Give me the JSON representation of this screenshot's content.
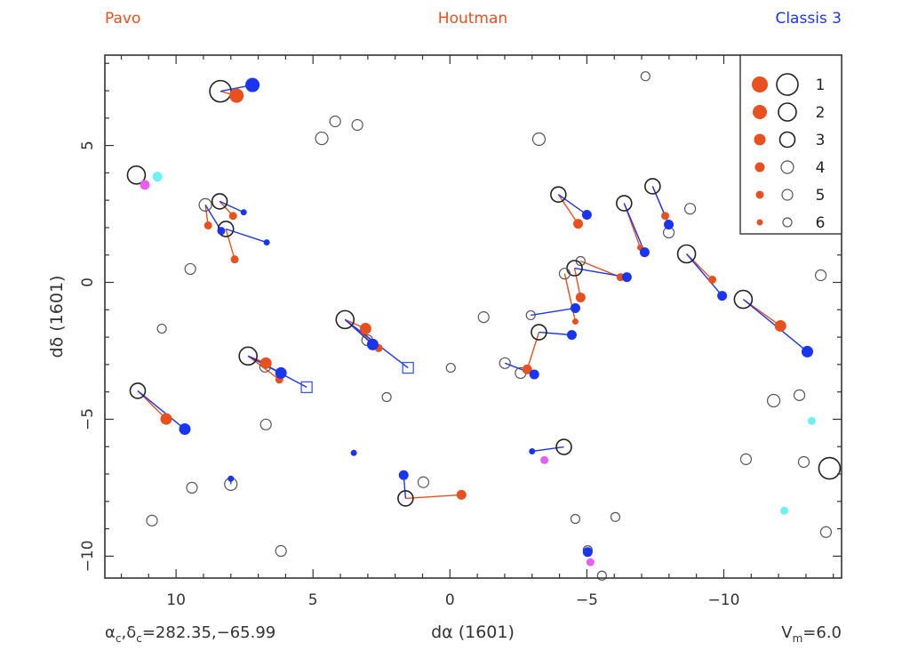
{
  "chart_data": {
    "type": "scatter",
    "title_left": "Pavo",
    "title_center": "Houtman",
    "title_right": "Classis 3",
    "xlabel": "dα (1601)",
    "ylabel": "dδ (1601)",
    "footer_left": {
      "a": "α",
      "a_sub": "c",
      "sep": ",",
      "d": "δ",
      "d_sub": "c",
      "value": "=282.35,−65.99"
    },
    "footer_right": {
      "v": "V",
      "v_sub": "m",
      "value": "=6.0"
    },
    "xlim": [
      12.6,
      -14.3
    ],
    "ylim": [
      -10.8,
      8.3
    ],
    "x_ticks": [
      10,
      5,
      0,
      -5,
      -10
    ],
    "x_tick_labels": [
      "10",
      "5",
      "0",
      "−5",
      "−10"
    ],
    "y_ticks": [
      5,
      0,
      -5,
      -10
    ],
    "y_tick_labels": [
      "5",
      "0",
      "−5",
      "−10"
    ],
    "grid": false,
    "colors": {
      "houtman": "#e8501e",
      "classis": "#1a35f0",
      "magenta": "#e85ef0",
      "cyan": "#6ef0f5",
      "star": "#222222",
      "frame": "#333333"
    },
    "legend": {
      "placement": "top-right",
      "entries": [
        {
          "mag": 1,
          "label": "1"
        },
        {
          "mag": 2,
          "label": "2"
        },
        {
          "mag": 3,
          "label": "3"
        },
        {
          "mag": 4,
          "label": "4"
        },
        {
          "mag": 5,
          "label": "5"
        },
        {
          "mag": 6,
          "label": "6"
        }
      ]
    },
    "stars": [
      {
        "x": 8.38,
        "y": 6.98,
        "mag": 1
      },
      {
        "x": 11.45,
        "y": 3.92,
        "mag": 2
      },
      {
        "x": 8.93,
        "y": 2.83,
        "mag": 4
      },
      {
        "x": 8.41,
        "y": 2.96,
        "mag": 3
      },
      {
        "x": 8.18,
        "y": 1.95,
        "mag": 3
      },
      {
        "x": 9.48,
        "y": 0.49,
        "mag": 5
      },
      {
        "x": 4.68,
        "y": 5.26,
        "mag": 4
      },
      {
        "x": 4.19,
        "y": 5.88,
        "mag": 5
      },
      {
        "x": 3.38,
        "y": 5.75,
        "mag": 5
      },
      {
        "x": -3.25,
        "y": 5.23,
        "mag": 4
      },
      {
        "x": -7.14,
        "y": 7.53,
        "mag": 6
      },
      {
        "x": 11.4,
        "y": -3.96,
        "mag": 3
      },
      {
        "x": 10.52,
        "y": -1.69,
        "mag": 6
      },
      {
        "x": 7.37,
        "y": -2.69,
        "mag": 2
      },
      {
        "x": 6.75,
        "y": -3.08,
        "mag": 5
      },
      {
        "x": 6.72,
        "y": -5.19,
        "mag": 5
      },
      {
        "x": 9.42,
        "y": -7.5,
        "mag": 5
      },
      {
        "x": 8.0,
        "y": -7.37,
        "mag": 4
      },
      {
        "x": 10.88,
        "y": -8.7,
        "mag": 5
      },
      {
        "x": 6.17,
        "y": -9.81,
        "mag": 5
      },
      {
        "x": 3.83,
        "y": -1.36,
        "mag": 2
      },
      {
        "x": 3.02,
        "y": -2.11,
        "mag": 5
      },
      {
        "x": 2.31,
        "y": -4.19,
        "mag": 6
      },
      {
        "x": -0.03,
        "y": -3.12,
        "mag": 6
      },
      {
        "x": -1.23,
        "y": -1.27,
        "mag": 5
      },
      {
        "x": 0.97,
        "y": -7.3,
        "mag": 5
      },
      {
        "x": 1.62,
        "y": -7.89,
        "mag": 3
      },
      {
        "x": -3.96,
        "y": 3.21,
        "mag": 3
      },
      {
        "x": -6.36,
        "y": 2.89,
        "mag": 3
      },
      {
        "x": -7.4,
        "y": 3.51,
        "mag": 3
      },
      {
        "x": -7.99,
        "y": 1.82,
        "mag": 5
      },
      {
        "x": -8.77,
        "y": 2.69,
        "mag": 5
      },
      {
        "x": -8.64,
        "y": 1.04,
        "mag": 2
      },
      {
        "x": -10.71,
        "y": -0.62,
        "mag": 2
      },
      {
        "x": -13.54,
        "y": 0.26,
        "mag": 5
      },
      {
        "x": -4.77,
        "y": 0.78,
        "mag": 6
      },
      {
        "x": -4.55,
        "y": 0.52,
        "mag": 3
      },
      {
        "x": -4.19,
        "y": 0.32,
        "mag": 5
      },
      {
        "x": -2.95,
        "y": -1.2,
        "mag": 6
      },
      {
        "x": -3.25,
        "y": -1.82,
        "mag": 3
      },
      {
        "x": -2.01,
        "y": -2.95,
        "mag": 5
      },
      {
        "x": -2.58,
        "y": -3.31,
        "mag": 5
      },
      {
        "x": -11.82,
        "y": -4.32,
        "mag": 4
      },
      {
        "x": -12.76,
        "y": -4.12,
        "mag": 5
      },
      {
        "x": -10.81,
        "y": -6.46,
        "mag": 5
      },
      {
        "x": -12.92,
        "y": -6.56,
        "mag": 5
      },
      {
        "x": -13.86,
        "y": -6.79,
        "mag": 1
      },
      {
        "x": -4.16,
        "y": -6.01,
        "mag": 3
      },
      {
        "x": -4.58,
        "y": -8.64,
        "mag": 6
      },
      {
        "x": -6.04,
        "y": -8.57,
        "mag": 6
      },
      {
        "x": -13.73,
        "y": -9.12,
        "mag": 5
      },
      {
        "x": -5.03,
        "y": -9.78,
        "mag": 6
      },
      {
        "x": -5.55,
        "y": -10.71,
        "mag": 6
      }
    ],
    "houtman": [
      {
        "x": 7.79,
        "y": 6.82,
        "mag": 2,
        "from": [
          8.38,
          6.98
        ]
      },
      {
        "x": 7.92,
        "y": 2.43,
        "mag": 5,
        "from": [
          8.41,
          2.96
        ]
      },
      {
        "x": 8.83,
        "y": 2.08,
        "mag": 5,
        "from": [
          8.93,
          2.83
        ]
      },
      {
        "x": 7.86,
        "y": 0.84,
        "mag": 5,
        "from": [
          8.18,
          1.95
        ]
      },
      {
        "x": 10.36,
        "y": -4.99,
        "mag": 3,
        "from": [
          11.4,
          -3.96
        ]
      },
      {
        "x": 6.72,
        "y": -2.95,
        "mag": 3,
        "from": [
          7.37,
          -2.69
        ]
      },
      {
        "x": 6.23,
        "y": -3.55,
        "mag": 5,
        "from": [
          7.37,
          -2.69
        ]
      },
      {
        "x": 3.08,
        "y": -1.69,
        "mag": 3,
        "from": [
          3.83,
          -1.36
        ]
      },
      {
        "x": 2.6,
        "y": -2.4,
        "mag": 5,
        "from": [
          3.83,
          -1.36
        ]
      },
      {
        "x": -0.42,
        "y": -7.76,
        "mag": 4,
        "from": [
          1.62,
          -7.89
        ]
      },
      {
        "x": -4.68,
        "y": 2.14,
        "mag": 4,
        "from": [
          -3.96,
          3.21
        ]
      },
      {
        "x": -6.95,
        "y": 1.27,
        "mag": 6,
        "from": [
          -6.36,
          2.89
        ]
      },
      {
        "x": -7.86,
        "y": 2.43,
        "mag": 5,
        "from": [
          -7.4,
          3.51
        ]
      },
      {
        "x": -9.58,
        "y": 0.1,
        "mag": 5,
        "from": [
          -8.64,
          1.04
        ]
      },
      {
        "x": -12.07,
        "y": -1.59,
        "mag": 3,
        "from": [
          -10.71,
          -0.62
        ]
      },
      {
        "x": -6.23,
        "y": 0.19,
        "mag": 5,
        "from": [
          -4.77,
          0.78
        ]
      },
      {
        "x": -4.77,
        "y": -0.55,
        "mag": 4,
        "from": [
          -4.55,
          0.52
        ]
      },
      {
        "x": -4.58,
        "y": -1.43,
        "mag": 6,
        "from": [
          -4.19,
          0.32
        ]
      },
      {
        "x": -2.82,
        "y": -3.18,
        "mag": 4,
        "from": [
          -3.25,
          -1.82
        ]
      }
    ],
    "classis": [
      {
        "x": 7.21,
        "y": 7.21,
        "mag": 2,
        "from": [
          8.38,
          6.98
        ]
      },
      {
        "x": 7.53,
        "y": 2.56,
        "mag": 6,
        "from": [
          8.41,
          2.96
        ]
      },
      {
        "x": 8.35,
        "y": 1.88,
        "mag": 5,
        "from": [
          8.93,
          2.83
        ]
      },
      {
        "x": 6.69,
        "y": 1.46,
        "mag": 6,
        "from": [
          8.18,
          1.95
        ]
      },
      {
        "x": 9.68,
        "y": -5.36,
        "mag": 3,
        "from": [
          11.4,
          -3.96
        ]
      },
      {
        "x": 6.17,
        "y": -3.31,
        "mag": 3,
        "from": [
          7.37,
          -2.69
        ]
      },
      {
        "x": 2.82,
        "y": -2.27,
        "mag": 3,
        "from": [
          3.83,
          -1.36
        ]
      },
      {
        "x": 8.0,
        "y": -7.17,
        "mag": 6,
        "from": [
          8.0,
          -7.37
        ]
      },
      {
        "x": 3.51,
        "y": -6.23,
        "mag": 6
      },
      {
        "x": 1.69,
        "y": -7.04,
        "mag": 4,
        "from": [
          1.62,
          -7.89
        ]
      },
      {
        "x": -3.0,
        "y": -6.17,
        "mag": 6,
        "from": [
          -4.16,
          -6.01
        ]
      },
      {
        "x": -5.03,
        "y": -9.85,
        "mag": 4
      },
      {
        "x": -5.0,
        "y": 2.47,
        "mag": 4,
        "from": [
          -3.96,
          3.21
        ]
      },
      {
        "x": -7.11,
        "y": 1.1,
        "mag": 4,
        "from": [
          -6.36,
          2.89
        ]
      },
      {
        "x": -7.99,
        "y": 2.11,
        "mag": 4,
        "from": [
          -7.4,
          3.51
        ]
      },
      {
        "x": -9.94,
        "y": -0.49,
        "mag": 4,
        "from": [
          -8.64,
          1.04
        ]
      },
      {
        "x": -13.05,
        "y": -2.53,
        "mag": 3,
        "from": [
          -10.71,
          -0.62
        ]
      },
      {
        "x": -6.46,
        "y": 0.19,
        "mag": 4,
        "from": [
          -4.55,
          0.52
        ]
      },
      {
        "x": -4.58,
        "y": -0.94,
        "mag": 4,
        "from": [
          -2.95,
          -1.2
        ]
      },
      {
        "x": -4.45,
        "y": -1.92,
        "mag": 4,
        "from": [
          -3.25,
          -1.82
        ]
      },
      {
        "x": -3.08,
        "y": -3.36,
        "mag": 4,
        "from": [
          -2.01,
          -2.95
        ]
      }
    ],
    "classis_squares": [
      {
        "x": 5.23,
        "y": -3.83,
        "from": [
          7.37,
          -2.69
        ]
      },
      {
        "x": 1.53,
        "y": -3.12,
        "from": [
          3.83,
          -1.36
        ]
      }
    ],
    "magenta": [
      {
        "x": 11.14,
        "y": 3.56,
        "mag": 4
      },
      {
        "x": -3.45,
        "y": -6.49,
        "mag": 5
      },
      {
        "x": -5.13,
        "y": -10.22,
        "mag": 5
      }
    ],
    "cyan": [
      {
        "x": 10.68,
        "y": 3.86,
        "mag": 4
      },
      {
        "x": -13.21,
        "y": -5.06,
        "mag": 5
      },
      {
        "x": -12.21,
        "y": -8.34,
        "mag": 5
      }
    ]
  }
}
